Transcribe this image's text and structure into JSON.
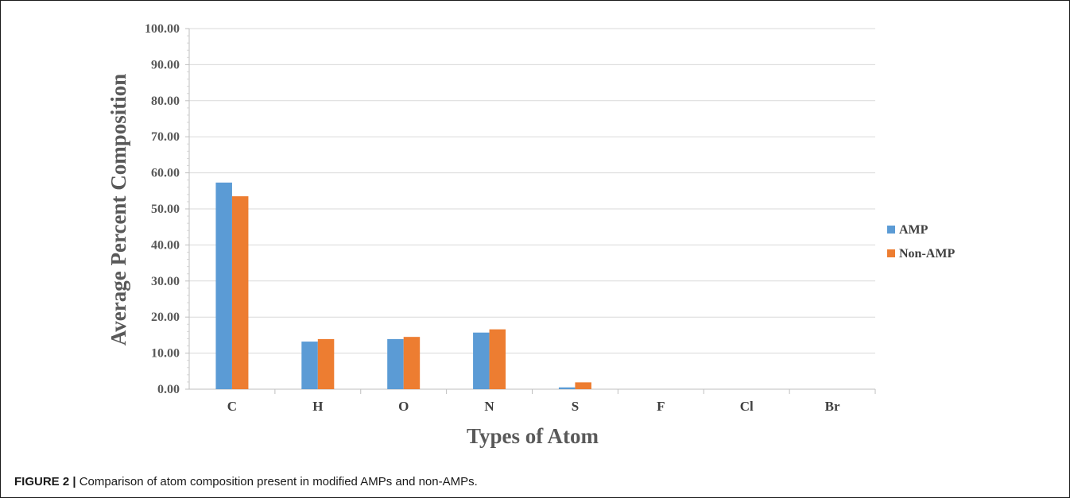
{
  "chart_data": {
    "type": "bar",
    "title": "",
    "xlabel": "Types of Atom",
    "ylabel": "Average Percent Composition",
    "categories": [
      "C",
      "H",
      "O",
      "N",
      "S",
      "F",
      "Cl",
      "Br"
    ],
    "series": [
      {
        "name": "AMP",
        "color": "#5b9bd5",
        "values": [
          57.3,
          13.2,
          13.9,
          15.7,
          0.5,
          0.0,
          0.0,
          0.0
        ]
      },
      {
        "name": "Non-AMP",
        "color": "#ed7d31",
        "values": [
          53.5,
          13.9,
          14.5,
          16.6,
          1.9,
          0.0,
          0.0,
          0.0
        ]
      }
    ],
    "ylim": [
      0,
      100
    ],
    "yticks": [
      "0.00",
      "10.00",
      "20.00",
      "30.00",
      "40.00",
      "50.00",
      "60.00",
      "70.00",
      "80.00",
      "90.00",
      "100.00"
    ],
    "grid": true,
    "legend_position": "right"
  },
  "caption": {
    "label": "FIGURE 2 |",
    "text": " Comparison of atom composition present in modified AMPs and non-AMPs."
  }
}
